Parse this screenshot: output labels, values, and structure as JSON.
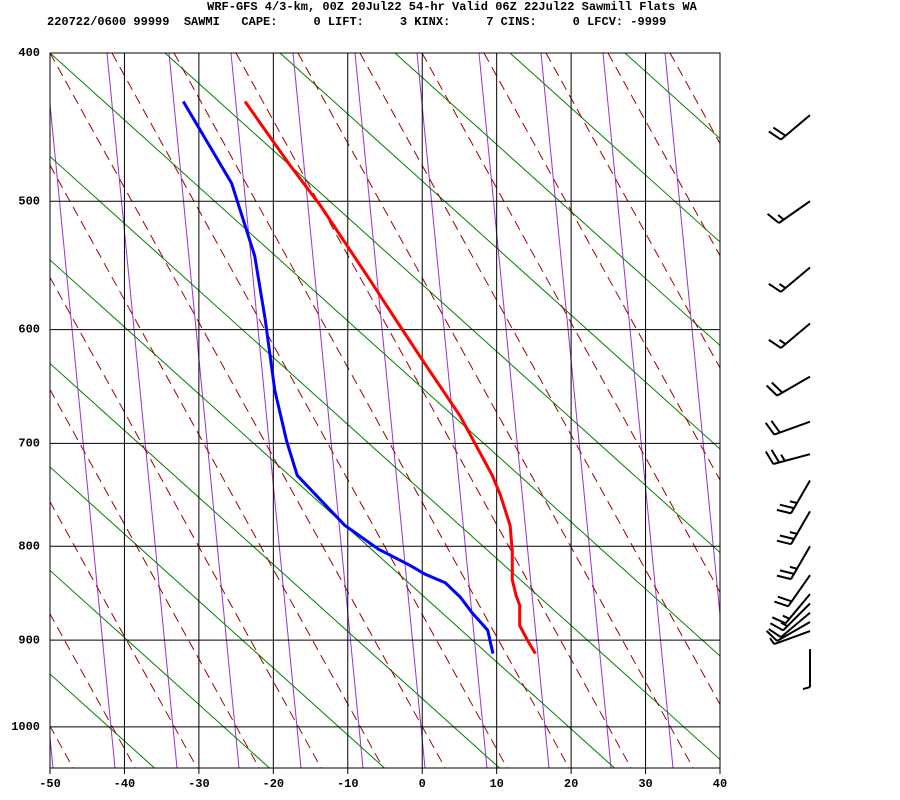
{
  "chart_data": {
    "type": "skewt",
    "title": "WRF-GFS 4/3-km, 00Z 20Jul22 54-hr Valid 06Z 22Jul22 Sawmill Flats WA",
    "subtitle": "220722/0600 99999  SAWMI   CAPE:     0 LIFT:     3 KINX:     7 CINS:     0 LFCV: -9999",
    "xlim": [
      -50,
      40
    ],
    "xticks": [
      -50,
      -40,
      -30,
      -20,
      -10,
      0,
      10,
      20,
      30,
      40
    ],
    "ylim": [
      400,
      1050
    ],
    "yticks": [
      400,
      500,
      600,
      700,
      800,
      900,
      1000
    ],
    "grid": true,
    "series": [
      {
        "color": "#ff0000",
        "x": [
          -23.8,
          -17.8,
          -13.7,
          -7.0,
          -3.0,
          1.0,
          5.1,
          9.4,
          10.5,
          11.8,
          12.1,
          12.1,
          12.6,
          13.1,
          13.1,
          14.2,
          15.2
        ],
        "values": [
          431,
          474,
          503,
          560,
          597,
          635,
          675,
          730,
          749,
          779,
          805,
          835,
          851,
          862,
          884,
          901,
          915
        ]
      },
      {
        "color": "#0000ff",
        "x": [
          -32.1,
          -25.6,
          -22.5,
          -21.1,
          -19.8,
          -18.2,
          -16.8,
          -10.4,
          -5.9,
          -1.6,
          0.4,
          3.1,
          5.1,
          6.7,
          8.8,
          9.5
        ],
        "values": [
          431,
          487,
          541,
          591,
          652,
          698,
          730,
          779,
          803,
          820,
          829,
          838,
          853,
          870,
          889,
          915
        ]
      }
    ],
    "wind": {
      "pressure": [
        440,
        500,
        550,
        595,
        640,
        680,
        710,
        735,
        765,
        800,
        830,
        850,
        860,
        870,
        880,
        890,
        910
      ],
      "direction": [
        230,
        235,
        230,
        230,
        240,
        250,
        255,
        210,
        210,
        210,
        215,
        220,
        225,
        230,
        240,
        250,
        180
      ],
      "speed": [
        20,
        15,
        15,
        15,
        20,
        20,
        25,
        25,
        25,
        25,
        20,
        15,
        15,
        10,
        10,
        5,
        5
      ]
    }
  }
}
